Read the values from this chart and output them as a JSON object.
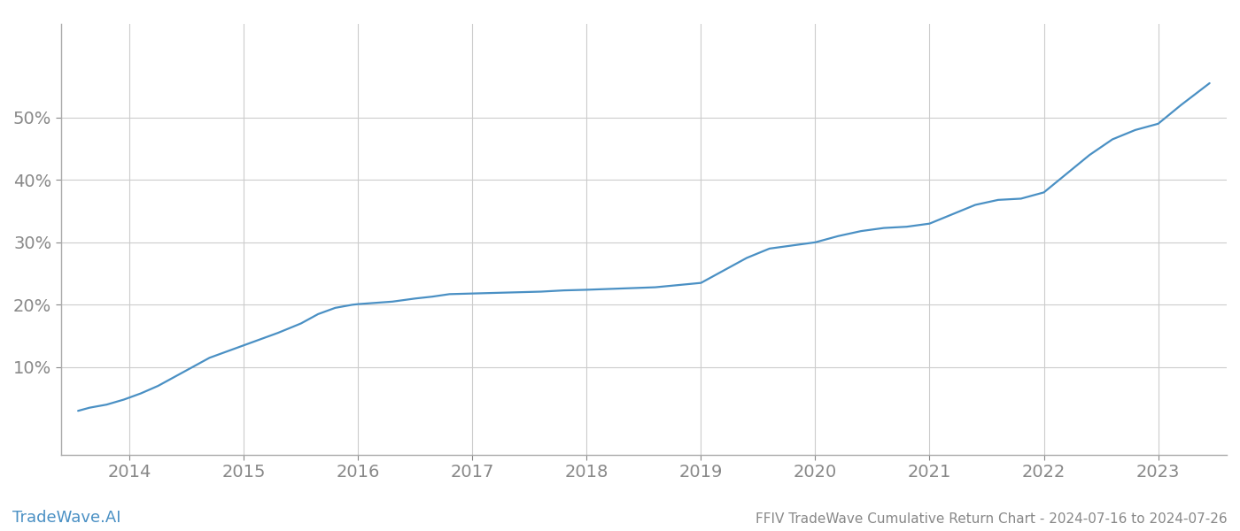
{
  "title": "FFIV TradeWave Cumulative Return Chart - 2024-07-16 to 2024-07-26",
  "watermark": "TradeWave.AI",
  "line_color": "#4a90c4",
  "background_color": "#ffffff",
  "grid_color": "#cccccc",
  "x_years": [
    2014,
    2015,
    2016,
    2017,
    2018,
    2019,
    2020,
    2021,
    2022,
    2023
  ],
  "x_data": [
    2013.55,
    2013.65,
    2013.8,
    2013.95,
    2014.1,
    2014.25,
    2014.4,
    2014.55,
    2014.7,
    2014.85,
    2015.0,
    2015.15,
    2015.3,
    2015.5,
    2015.65,
    2015.8,
    2015.95,
    2016.0,
    2016.15,
    2016.3,
    2016.5,
    2016.65,
    2016.8,
    2017.0,
    2017.2,
    2017.4,
    2017.6,
    2017.8,
    2018.0,
    2018.15,
    2018.3,
    2018.45,
    2018.6,
    2019.0,
    2019.2,
    2019.4,
    2019.6,
    2019.8,
    2020.0,
    2020.2,
    2020.4,
    2020.6,
    2020.8,
    2021.0,
    2021.2,
    2021.4,
    2021.6,
    2021.8,
    2022.0,
    2022.2,
    2022.4,
    2022.6,
    2022.8,
    2023.0,
    2023.2,
    2023.45
  ],
  "y_data": [
    3.0,
    3.5,
    4.0,
    4.8,
    5.8,
    7.0,
    8.5,
    10.0,
    11.5,
    12.5,
    13.5,
    14.5,
    15.5,
    17.0,
    18.5,
    19.5,
    20.0,
    20.1,
    20.3,
    20.5,
    21.0,
    21.3,
    21.7,
    21.8,
    21.9,
    22.0,
    22.1,
    22.3,
    22.4,
    22.5,
    22.6,
    22.7,
    22.8,
    23.5,
    25.5,
    27.5,
    29.0,
    29.5,
    30.0,
    31.0,
    31.8,
    32.3,
    32.5,
    33.0,
    34.5,
    36.0,
    36.8,
    37.0,
    38.0,
    41.0,
    44.0,
    46.5,
    48.0,
    49.0,
    52.0,
    55.5
  ],
  "yticks": [
    10,
    20,
    30,
    40,
    50
  ],
  "ylim": [
    -4,
    65
  ],
  "xlim": [
    2013.4,
    2023.6
  ],
  "title_fontsize": 11,
  "tick_fontsize": 14,
  "watermark_fontsize": 13
}
